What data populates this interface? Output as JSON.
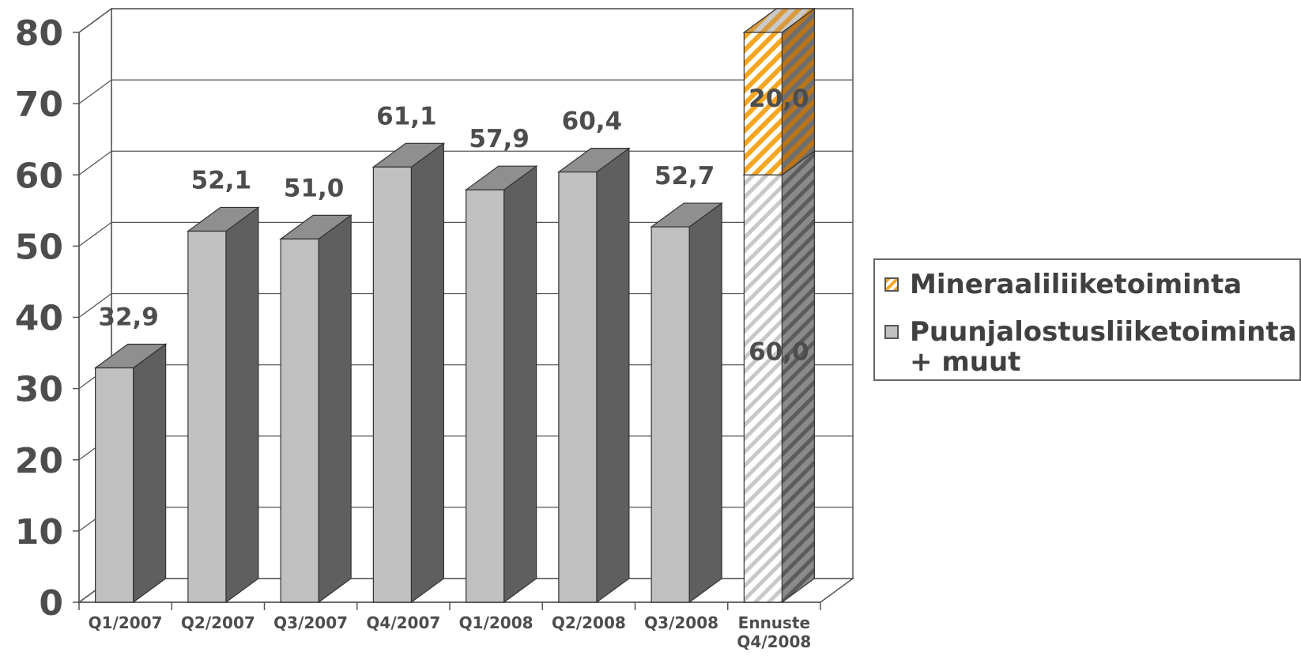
{
  "chart_data": {
    "type": "bar",
    "stacked": true,
    "three_d": true,
    "categories": [
      "Q1/2007",
      "Q2/2007",
      "Q3/2007",
      "Q4/2007",
      "Q1/2008",
      "Q2/2008",
      "Q3/2008",
      "Ennuste\nQ4/2008"
    ],
    "series": [
      {
        "name": "Puunjalostusliiketoiminta\n+ muut",
        "values": [
          32.9,
          52.1,
          51.0,
          61.1,
          57.9,
          60.4,
          52.7,
          60.0
        ],
        "labels": [
          "32,9",
          "52,1",
          "51,0",
          "61,1",
          "57,9",
          "60,4",
          "52,7",
          "60,0"
        ],
        "color": "#c0c0c0",
        "hatched_index": 7
      },
      {
        "name": "Mineraaliliiketoiminta",
        "values": [
          null,
          null,
          null,
          null,
          null,
          null,
          null,
          20.0
        ],
        "labels": [
          "",
          "",
          "",
          "",
          "",
          "",
          "",
          "20,0"
        ],
        "color": "#f5a623",
        "hatched": true
      }
    ],
    "y_ticks": [
      "0",
      "10",
      "20",
      "30",
      "40",
      "50",
      "60",
      "70",
      "80"
    ],
    "ylim": [
      0,
      80
    ],
    "grid": true,
    "legend": "right"
  }
}
